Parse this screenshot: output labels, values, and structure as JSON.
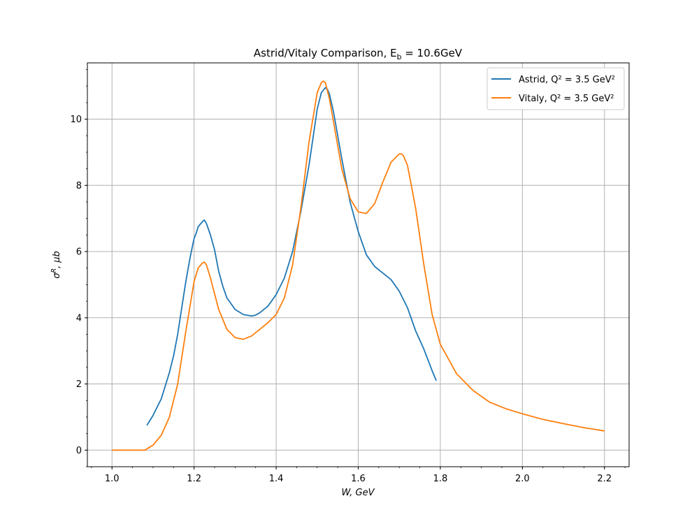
{
  "chart_data": {
    "type": "line",
    "title": "Astrid/Vitaly Comparison, E_b = 10.6GeV",
    "xlabel": "W, GeV",
    "ylabel": "σ^R, μb",
    "xlim": [
      0.94,
      2.26
    ],
    "ylim": [
      -0.5,
      11.7
    ],
    "xticks": [
      1.0,
      1.2,
      1.4,
      1.6,
      1.8,
      2.0,
      2.2
    ],
    "xtick_labels": [
      "1.0",
      "1.2",
      "1.4",
      "1.6",
      "1.8",
      "2.0",
      "2.2"
    ],
    "yticks": [
      0,
      2,
      4,
      6,
      8,
      10
    ],
    "ytick_labels": [
      "0",
      "2",
      "4",
      "6",
      "8",
      "10"
    ],
    "grid": true,
    "legend_position": "top-right",
    "series": [
      {
        "name": "Astrid, Q² = 3.5 GeV²",
        "color": "#1f77b4",
        "x": [
          1.085,
          1.09,
          1.1,
          1.11,
          1.12,
          1.13,
          1.14,
          1.15,
          1.16,
          1.17,
          1.18,
          1.19,
          1.2,
          1.205,
          1.21,
          1.22,
          1.225,
          1.23,
          1.24,
          1.25,
          1.26,
          1.27,
          1.28,
          1.3,
          1.32,
          1.34,
          1.35,
          1.36,
          1.38,
          1.4,
          1.42,
          1.44,
          1.46,
          1.48,
          1.5,
          1.51,
          1.52,
          1.525,
          1.53,
          1.54,
          1.56,
          1.58,
          1.6,
          1.62,
          1.64,
          1.66,
          1.68,
          1.7,
          1.72,
          1.74,
          1.76,
          1.78,
          1.79
        ],
        "y": [
          0.75,
          0.85,
          1.05,
          1.3,
          1.55,
          1.95,
          2.35,
          2.85,
          3.5,
          4.3,
          5.1,
          5.8,
          6.4,
          6.55,
          6.75,
          6.9,
          6.95,
          6.85,
          6.5,
          6.05,
          5.4,
          4.95,
          4.6,
          4.25,
          4.1,
          4.05,
          4.08,
          4.15,
          4.35,
          4.7,
          5.2,
          6.0,
          7.2,
          8.6,
          10.3,
          10.8,
          10.95,
          10.9,
          10.75,
          10.2,
          8.8,
          7.5,
          6.6,
          5.9,
          5.55,
          5.35,
          5.15,
          4.8,
          4.3,
          3.6,
          3.05,
          2.4,
          2.1
        ]
      },
      {
        "name": "Vitaly, Q² = 3.5 GeV²",
        "color": "#ff7f0e",
        "x": [
          1.0,
          1.04,
          1.08,
          1.1,
          1.12,
          1.14,
          1.16,
          1.18,
          1.2,
          1.21,
          1.22,
          1.225,
          1.23,
          1.24,
          1.26,
          1.28,
          1.3,
          1.32,
          1.34,
          1.36,
          1.38,
          1.4,
          1.42,
          1.44,
          1.46,
          1.48,
          1.5,
          1.51,
          1.515,
          1.52,
          1.53,
          1.54,
          1.56,
          1.58,
          1.6,
          1.62,
          1.64,
          1.66,
          1.68,
          1.7,
          1.705,
          1.71,
          1.72,
          1.74,
          1.76,
          1.78,
          1.8,
          1.84,
          1.88,
          1.92,
          1.96,
          2.0,
          2.05,
          2.1,
          2.15,
          2.2
        ],
        "y": [
          0.0,
          0.0,
          0.0,
          0.15,
          0.45,
          1.0,
          2.0,
          3.6,
          5.1,
          5.5,
          5.65,
          5.68,
          5.6,
          5.2,
          4.25,
          3.65,
          3.4,
          3.35,
          3.45,
          3.65,
          3.85,
          4.1,
          4.6,
          5.6,
          7.3,
          9.3,
          10.8,
          11.1,
          11.15,
          11.1,
          10.6,
          9.9,
          8.5,
          7.6,
          7.2,
          7.15,
          7.45,
          8.1,
          8.7,
          8.95,
          8.95,
          8.9,
          8.6,
          7.3,
          5.6,
          4.1,
          3.2,
          2.3,
          1.8,
          1.45,
          1.25,
          1.1,
          0.93,
          0.8,
          0.68,
          0.58
        ]
      }
    ]
  }
}
